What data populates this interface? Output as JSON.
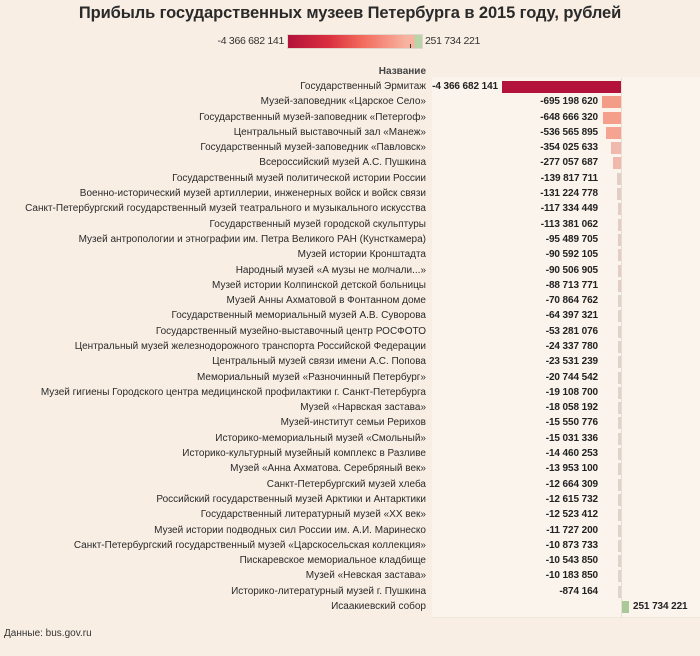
{
  "chart_data": {
    "type": "bar",
    "orientation": "horizontal",
    "title": "Прибыль государственных музеев Петербурга в 2015 году, рублей",
    "category_header": "Название",
    "color_scale": {
      "min_label": "-4 366 682 141",
      "max_label": "251 734 221",
      "min": -4366682141,
      "max": 251734221,
      "colors": [
        "#b3123b",
        "#d92e3e",
        "#f26a5c",
        "#f8b2a0",
        "#b8d4a8"
      ]
    },
    "categories": [
      "Государственный Эрмитаж",
      "Музей-заповедник «Царское Село»",
      "Государственный музей-заповедник «Петергоф»",
      "Центральный выставочный зал «Манеж»",
      "Государственный музей-заповедник «Павловск»",
      "Всероссийский музей А.С. Пушкина",
      "Государственный музей политической истории России",
      "Военно-исторический музей артиллерии, инженерных войск и войск связи",
      "Санкт-Петербургский государственный музей театрального и музыкального искусства",
      "Государственный музей городской скульптуры",
      "Музей антропологии и этнографии им. Петра Великого РАН (Кунсткамера)",
      "Музей истории Кронштадта",
      "Народный музей «А музы не молчали...»",
      "Музей истории Колпинской детской больницы",
      "Музей Анны Ахматовой в Фонтанном доме",
      "Государственный мемориальный музей А.В. Суворова",
      "Государственный музейно-выставочный центр РОСФОТО",
      "Центральный музей железнодорожного транспорта Российской Федерации",
      "Центральный музей связи имени А.С. Попова",
      "Мемориальный музей «Разночинный Петербург»",
      "Музей гигиены Городского центра медицинской профилактики г. Санкт-Петербурга",
      "Музей «Нарвская застава»",
      "Музей-институт семьи Рерихов",
      "Историко-мемориальный музей «Смольный»",
      "Историко-культурный музейный комплекс в Разливе",
      "Музей «Анна Ахматова. Серебряный век»",
      "Санкт-Петербургский музей хлеба",
      "Российский государственный музей Арктики и Антарктики",
      "Государственный литературный музей «XX век»",
      "Музей истории подводных сил России им. А.И. Маринеско",
      "Санкт-Петербургский государственный музей «Царскосельская коллекция»",
      "Пискаревское мемориальное кладбище",
      "Музей «Невская застава»",
      "Историко-литературный музей г. Пушкина",
      "Исаакиевский собор"
    ],
    "values": [
      -4366682141,
      -695198620,
      -648666320,
      -536565895,
      -354025633,
      -277057687,
      -139817711,
      -131224778,
      -117334449,
      -113381062,
      -95489705,
      -90592105,
      -90506905,
      -88713771,
      -70864762,
      -64397321,
      -53281076,
      -24337780,
      -23531239,
      -20744542,
      -19108700,
      -18058192,
      -15550776,
      -15031336,
      -14460253,
      -13953100,
      -12664309,
      -12615732,
      -12523412,
      -11727200,
      -10873733,
      -10543850,
      -10183850,
      -874164,
      251734221
    ],
    "value_labels": [
      "-4 366 682 141",
      "-695 198 620",
      "-648 666 320",
      "-536 565 895",
      "-354 025 633",
      "-277 057 687",
      "-139 817 711",
      "-131 224 778",
      "-117 334 449",
      "-113 381 062",
      "-95 489 705",
      "-90 592 105",
      "-90 506 905",
      "-88 713 771",
      "-70 864 762",
      "-64 397 321",
      "-53 281 076",
      "-24 337 780",
      "-23 531 239",
      "-20 744 542",
      "-19 108 700",
      "-18 058 192",
      "-15 550 776",
      "-15 031 336",
      "-14 460 253",
      "-13 953 100",
      "-12 664 309",
      "-12 615 732",
      "-12 523 412",
      "-11 727 200",
      "-10 873 733",
      "-10 543 850",
      "-10 183 850",
      "-874 164",
      "251 734 221"
    ],
    "xlabel": "",
    "ylabel": "",
    "grid": false
  },
  "source": "Данные: bus.gov.ru"
}
